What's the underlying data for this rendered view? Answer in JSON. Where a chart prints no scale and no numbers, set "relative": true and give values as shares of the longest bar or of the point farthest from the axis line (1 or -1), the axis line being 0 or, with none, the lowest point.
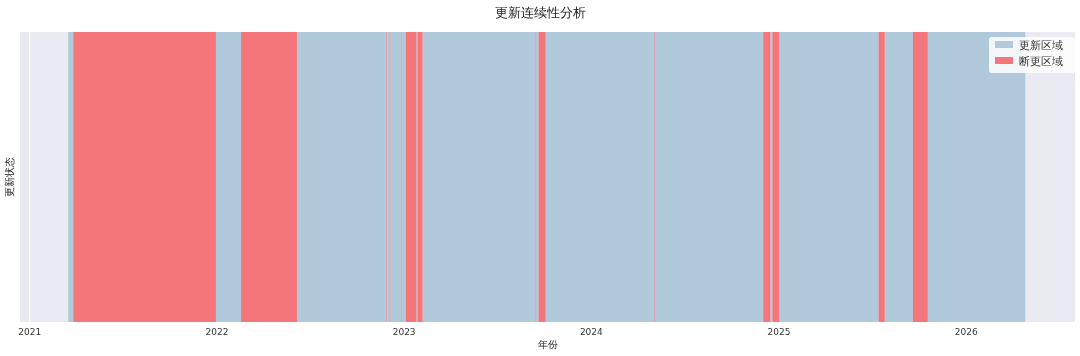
{
  "chart_data": {
    "type": "area",
    "relative": true,
    "title": "更新连续性分析",
    "xlabel": "年份",
    "ylabel": "更新状态",
    "xlim": [
      "2020-12-13",
      "2026-08-01"
    ],
    "xticks": [
      {
        "value": "2021-01-01",
        "label": "2021"
      },
      {
        "value": "2022-01-01",
        "label": "2022"
      },
      {
        "value": "2023-01-01",
        "label": "2023"
      },
      {
        "value": "2024-01-01",
        "label": "2024"
      },
      {
        "value": "2025-01-01",
        "label": "2025"
      },
      {
        "value": "2026-01-01",
        "label": "2026"
      }
    ],
    "tick_labels": "x",
    "grid": "x",
    "legend": "top right",
    "series": [
      {
        "name": "更新区域",
        "color": "#b0cadb",
        "x": [
          "2021-03-17",
          "2021-03-17",
          "2021-03-27",
          "2021-03-27",
          "2021-12-30",
          "2021-12-30",
          "2022-02-17",
          "2022-02-17",
          "2022-06-06",
          "2022-06-06",
          "2022-11-27",
          "2022-11-27",
          "2022-11-28",
          "2022-11-28",
          "2022-12-04",
          "2022-12-04",
          "2022-12-05",
          "2022-12-05",
          "2022-12-27",
          "2022-12-27",
          "2022-12-28",
          "2022-12-28",
          "2023-01-04",
          "2023-01-04",
          "2023-01-25",
          "2023-01-25",
          "2023-01-27",
          "2023-01-27",
          "2023-02-06",
          "2023-02-06",
          "2023-09-13",
          "2023-09-13",
          "2023-09-14",
          "2023-09-14",
          "2023-09-20",
          "2023-09-20",
          "2023-10-04",
          "2023-10-04",
          "2024-05-03",
          "2024-05-03",
          "2024-05-04",
          "2024-05-04",
          "2024-12-01",
          "2024-12-01",
          "2024-12-15",
          "2024-12-15",
          "2024-12-19",
          "2024-12-19",
          "2025-01-02",
          "2025-01-02",
          "2025-07-14",
          "2025-07-14",
          "2025-07-26",
          "2025-07-26",
          "2025-09-19",
          "2025-09-19",
          "2025-10-18",
          "2025-10-18",
          "2026-04-26",
          "2026-04-26"
        ],
        "values": [
          0,
          1,
          1,
          0,
          0,
          1,
          1,
          0,
          0,
          1,
          1,
          0,
          0,
          1,
          1,
          0,
          0,
          1,
          1,
          0,
          0,
          1,
          1,
          0,
          0,
          1,
          1,
          0,
          0,
          1,
          1,
          0,
          0,
          1,
          1,
          0,
          0,
          1,
          1,
          0,
          0,
          1,
          1,
          0,
          0,
          1,
          1,
          0,
          0,
          1,
          1,
          0,
          0,
          1,
          1,
          0,
          0,
          1,
          1,
          0
        ]
      },
      {
        "name": "断更区域",
        "color": "#f4767b",
        "x": [
          "2021-03-27",
          "2021-03-27",
          "2021-12-30",
          "2021-12-30",
          "2022-02-17",
          "2022-02-17",
          "2022-06-06",
          "2022-06-06",
          "2022-11-27",
          "2022-11-27",
          "2022-11-28",
          "2022-11-28",
          "2022-12-04",
          "2022-12-04",
          "2022-12-05",
          "2022-12-05",
          "2022-12-27",
          "2022-12-27",
          "2022-12-28",
          "2022-12-28",
          "2023-01-04",
          "2023-01-04",
          "2023-01-25",
          "2023-01-25",
          "2023-01-27",
          "2023-01-27",
          "2023-02-06",
          "2023-02-06",
          "2023-09-13",
          "2023-09-13",
          "2023-09-14",
          "2023-09-14",
          "2023-09-20",
          "2023-09-20",
          "2023-10-04",
          "2023-10-04",
          "2024-05-03",
          "2024-05-03",
          "2024-05-04",
          "2024-05-04",
          "2024-12-01",
          "2024-12-01",
          "2024-12-15",
          "2024-12-15",
          "2024-12-19",
          "2024-12-19",
          "2025-01-02",
          "2025-01-02",
          "2025-07-14",
          "2025-07-14",
          "2025-07-26",
          "2025-07-26",
          "2025-09-19",
          "2025-09-19",
          "2025-10-18",
          "2025-10-18"
        ],
        "values": [
          0,
          1,
          1,
          0,
          0,
          1,
          1,
          0,
          0,
          1,
          1,
          0,
          0,
          1,
          1,
          0,
          0,
          1,
          1,
          0,
          0,
          1,
          1,
          0,
          0,
          1,
          1,
          0,
          0,
          1,
          1,
          0,
          0,
          1,
          1,
          0,
          0,
          1,
          1,
          0,
          0,
          1,
          1,
          0,
          0,
          1,
          1,
          0,
          0,
          1,
          1,
          0,
          0,
          1,
          1,
          0
        ]
      }
    ]
  }
}
